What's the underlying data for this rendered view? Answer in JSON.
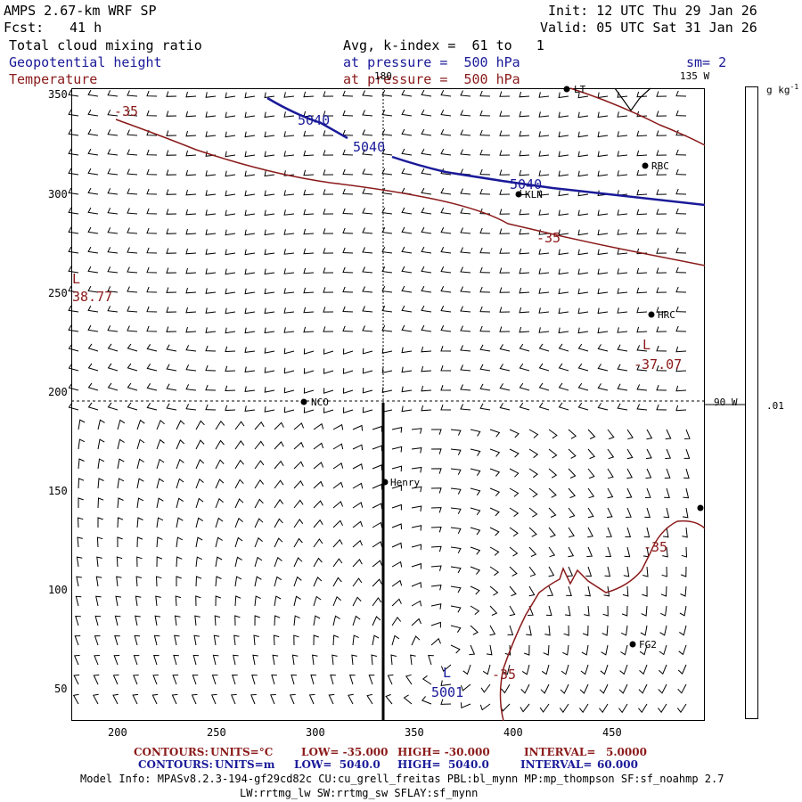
{
  "header": {
    "model": "AMPS 2.67-km WRF SP",
    "fcst_label": "Fcst:",
    "fcst_value": "41 h",
    "init": "Init: 12 UTC Thu 29 Jan 26",
    "valid": "Valid: 05 UTC Sat 31 Jan 26"
  },
  "fields": {
    "cloud": "Total cloud mixing ratio",
    "geopotential": "Geopotential height",
    "temperature": "Temperature",
    "avg_line": "Avg, k-index =  61 to   1",
    "pressure_blue": "at pressure =  500 hPa",
    "pressure_red": "at pressure =  500 hPa",
    "sm": "sm= 2"
  },
  "axes": {
    "x_ticks": [
      "200",
      "250",
      "300",
      "350",
      "400",
      "450"
    ],
    "y_ticks": [
      "350",
      "300",
      "250",
      "200",
      "150",
      "100",
      "50"
    ]
  },
  "map_labels": {
    "lon_180": "180",
    "lon_135w": "135 W",
    "lon_90w": "90 W",
    "stations": [
      "RBC",
      "KLN",
      "HRC",
      "NCO",
      "Henry",
      "FG2",
      "LT"
    ],
    "contour_5040": "5040",
    "contour_neg35": "-35",
    "low_L": "L",
    "low_5001": "5001",
    "low_temp": "-37.07",
    "edge_value": "38.77",
    "edge_letter": "L"
  },
  "colorbar": {
    "unit": "g kg",
    "unit_sup": "-1",
    "value": ".01"
  },
  "footer": {
    "line1": {
      "label": "CONTOURS:",
      "units": "UNITS=°C",
      "low": "LOW= -35.000",
      "high": "HIGH= -30.000",
      "interval": "INTERVAL=",
      "interval_val": "5.0000"
    },
    "line2": {
      "label": "CONTOURS:",
      "units": "UNITS=m",
      "low": "LOW=  5040.0",
      "high": "HIGH=  5040.0",
      "interval": "INTERVAL=",
      "interval_val": "60.000"
    },
    "model_info_1": "Model Info: MPASv8.2.3-194-gf29cd82c CU:cu_grell_freitas PBL:bl_mynn MP:mp_thompson SF:sf_noahmp 2.7",
    "model_info_2": "LW:rrtmg_lw SW:rrtmg_sw SFLAY:sf_mynn"
  },
  "colors": {
    "geopotential": "#1a1a99",
    "temperature": "#8b1a1a",
    "barb": "#000000"
  }
}
